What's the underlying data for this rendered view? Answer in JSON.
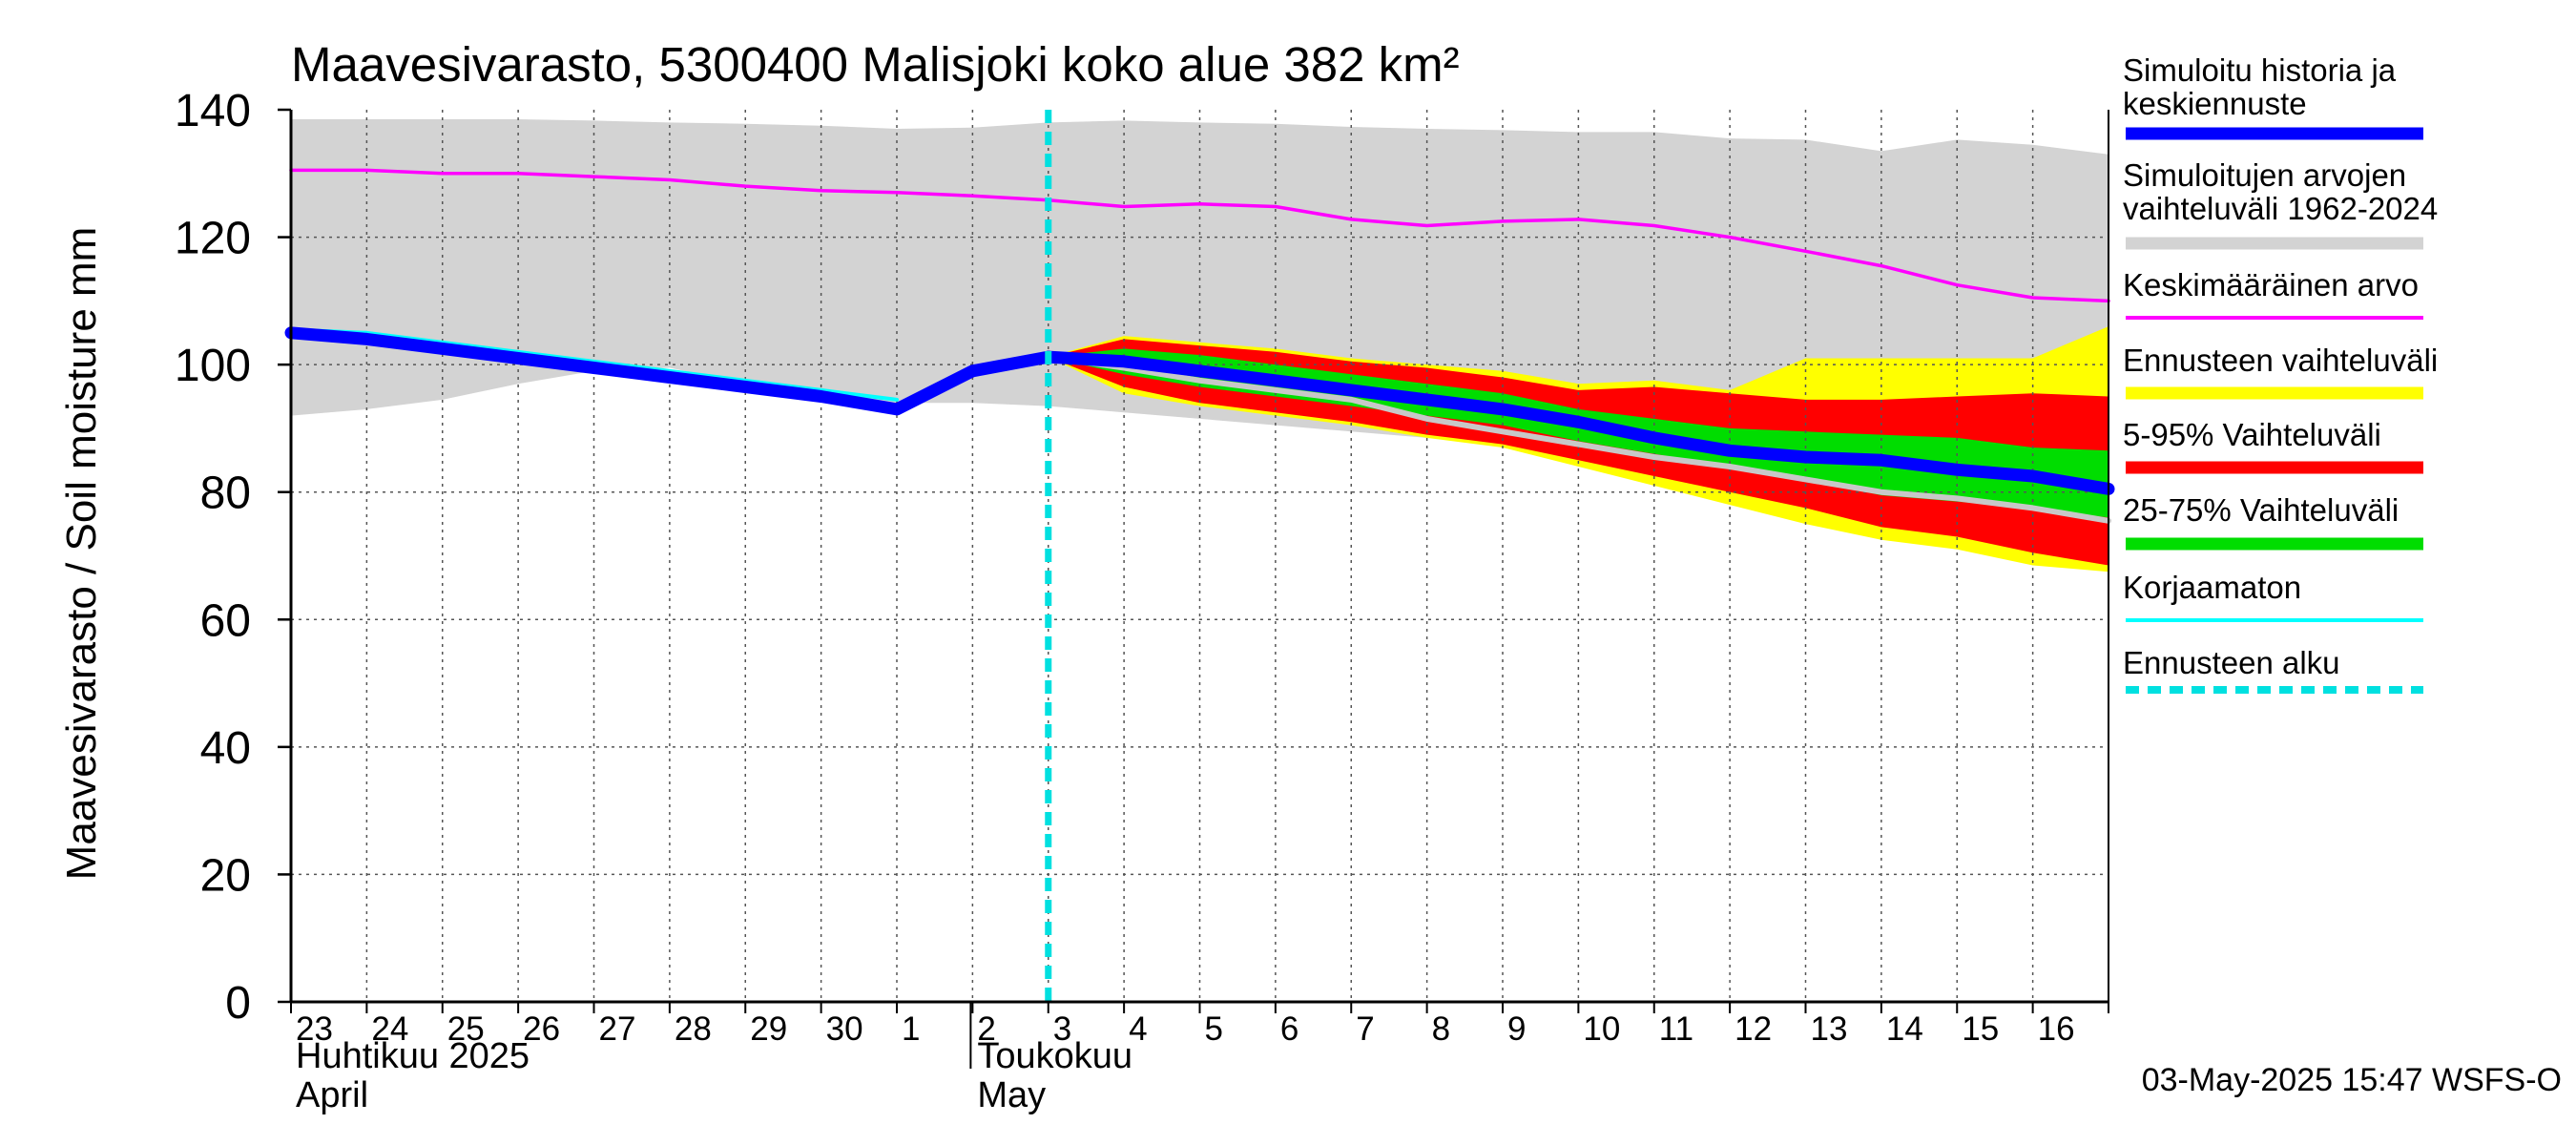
{
  "chart_data": {
    "type": "area",
    "title": "Maavesivarasto, 5300400 Malisjoki koko alue 382 km²",
    "ylabel": "Maavesivarasto / Soil moisture   mm",
    "ylim": [
      0,
      140
    ],
    "yticks": [
      0,
      20,
      40,
      60,
      80,
      100,
      120,
      140
    ],
    "xlim": [
      0,
      24
    ],
    "x_day_labels": [
      "23",
      "24",
      "25",
      "26",
      "27",
      "28",
      "29",
      "30",
      "1",
      "2",
      "3",
      "4",
      "5",
      "6",
      "7",
      "8",
      "9",
      "10",
      "11",
      "12",
      "13",
      "14",
      "15",
      "16"
    ],
    "month_labels": [
      {
        "fi": "Huhtikuu  2025",
        "en": "April",
        "x": 0
      },
      {
        "fi": "Toukokuu",
        "en": "May",
        "x": 9
      }
    ],
    "forecast_start_x": 10,
    "footer": "03-May-2025 15:47 WSFS-O",
    "grid": true,
    "colors": {
      "history": "#0000ff",
      "range": "#d3d3d3",
      "mean": "#ff00ff",
      "forecast_range": "#ffff00",
      "p5_95": "#ff0000",
      "p25_75": "#00dd00",
      "uncorrected": "#00ffff",
      "forecast_start": "#00e0e0"
    },
    "legend": [
      {
        "key": "history",
        "label": "Simuloitu historia ja keskiennuste",
        "lines": [
          "Simuloitu historia ja",
          "keskiennuste"
        ],
        "style": "thick"
      },
      {
        "key": "range",
        "label": "Simuloitujen arvojen vaihteluväli 1962-2024",
        "lines": [
          "Simuloitujen arvojen",
          "vaihteluväli 1962-2024"
        ],
        "style": "thick"
      },
      {
        "key": "mean",
        "label": "Keskimääräinen arvo",
        "lines": [
          "Keskimääräinen arvo"
        ],
        "style": "thin"
      },
      {
        "key": "forecast_range",
        "label": "Ennusteen vaihteluväli",
        "lines": [
          "Ennusteen vaihteluväli"
        ],
        "style": "thick"
      },
      {
        "key": "p5_95",
        "label": "5-95% Vaihteluväli",
        "lines": [
          "5-95% Vaihteluväli"
        ],
        "style": "thick"
      },
      {
        "key": "p25_75",
        "label": "25-75% Vaihteluväli",
        "lines": [
          "25-75% Vaihteluväli"
        ],
        "style": "thick"
      },
      {
        "key": "uncorrected",
        "label": "Korjaamaton",
        "lines": [
          "Korjaamaton"
        ],
        "style": "thin"
      },
      {
        "key": "forecast_start",
        "label": "Ennusteen alku",
        "lines": [
          "Ennusteen alku"
        ],
        "style": "dashed"
      }
    ],
    "series": {
      "range_upper": {
        "x": [
          0,
          1,
          2,
          3,
          4,
          5,
          6,
          7,
          8,
          9,
          10,
          11,
          12,
          13,
          14,
          15,
          16,
          17,
          18,
          19,
          20,
          21,
          22,
          23,
          24
        ],
        "values": [
          138.5,
          138.5,
          138.5,
          138.5,
          138.3,
          138,
          137.8,
          137.5,
          137,
          137.2,
          138,
          138.3,
          138,
          137.8,
          137.3,
          137,
          136.8,
          136.5,
          136.5,
          135.5,
          135.3,
          133.5,
          135.3,
          134.5,
          133
        ]
      },
      "range_lower": {
        "x": [
          0,
          1,
          2,
          3,
          4,
          5,
          6,
          7,
          8,
          9,
          10,
          11,
          12,
          13,
          14,
          15,
          16,
          17,
          18,
          19,
          20,
          21,
          22,
          23,
          24
        ],
        "values": [
          92,
          93,
          94.5,
          97,
          99,
          99.5,
          97,
          95,
          94,
          94,
          93.5,
          92.5,
          91.5,
          90.5,
          89.5,
          88.5,
          88,
          87,
          86,
          85,
          84.5,
          82,
          80,
          77,
          75
        ]
      },
      "mean": {
        "x": [
          0,
          1,
          2,
          3,
          4,
          5,
          6,
          7,
          8,
          9,
          10,
          11,
          12,
          13,
          14,
          15,
          16,
          17,
          18,
          19,
          20,
          21,
          22,
          23,
          24
        ],
        "values": [
          130.5,
          130.5,
          130,
          130,
          129.5,
          129,
          128,
          127.3,
          127,
          126.5,
          125.8,
          124.8,
          125.2,
          124.8,
          122.8,
          121.8,
          122.5,
          122.8,
          121.8,
          120,
          117.8,
          115.5,
          112.5,
          110.5,
          110
        ]
      },
      "history": {
        "x": [
          0,
          1,
          2,
          3,
          4,
          5,
          6,
          7,
          8,
          9,
          10
        ],
        "values": [
          105,
          104,
          102.5,
          101,
          99.5,
          98,
          96.5,
          95,
          93,
          99,
          101.2
        ]
      },
      "uncorrected": {
        "x": [
          0,
          1,
          2,
          3,
          4,
          5,
          6,
          7,
          8
        ],
        "values": [
          105.5,
          105,
          103.5,
          102,
          100.5,
          99,
          97.5,
          96,
          94.5
        ]
      },
      "forecast_range_upper": {
        "x": [
          10,
          11,
          12,
          13,
          14,
          15,
          16,
          17,
          18,
          19,
          20,
          21,
          22,
          23,
          24
        ],
        "values": [
          101.2,
          104.5,
          103.5,
          102.5,
          101,
          100,
          99,
          97,
          97.5,
          96,
          101,
          101,
          101,
          101,
          106
        ]
      },
      "forecast_range_lower": {
        "x": [
          10,
          11,
          12,
          13,
          14,
          15,
          16,
          17,
          18,
          19,
          20,
          21,
          22,
          23,
          24
        ],
        "values": [
          101.2,
          95.5,
          93.5,
          92,
          90.5,
          88.5,
          87,
          84,
          81,
          78,
          75,
          72.5,
          71,
          68.5,
          67.5
        ]
      },
      "p5_95_upper": {
        "x": [
          10,
          11,
          12,
          13,
          14,
          15,
          16,
          17,
          18,
          19,
          20,
          21,
          22,
          23,
          24
        ],
        "values": [
          101.2,
          104,
          103,
          102,
          100.5,
          99.5,
          98,
          96,
          96.5,
          95.5,
          94.5,
          94.5,
          95,
          95.5,
          95
        ]
      },
      "p5_95_lower": {
        "x": [
          10,
          11,
          12,
          13,
          14,
          15,
          16,
          17,
          18,
          19,
          20,
          21,
          22,
          23,
          24
        ],
        "values": [
          101.2,
          96.5,
          94,
          92.5,
          91,
          89,
          87.5,
          85,
          82.5,
          80,
          77.5,
          74.5,
          73,
          70.5,
          68.5
        ]
      },
      "p25_75_upper": {
        "x": [
          10,
          11,
          12,
          13,
          14,
          15,
          16,
          17,
          18,
          19,
          20,
          21,
          22,
          23,
          24
        ],
        "values": [
          101.2,
          102.5,
          101.5,
          100,
          98.5,
          97,
          95.5,
          93,
          91.5,
          90,
          89.5,
          89,
          88.5,
          87,
          86.5
        ]
      },
      "p25_75_lower": {
        "x": [
          10,
          11,
          12,
          13,
          14,
          15,
          16,
          17,
          18,
          19,
          20,
          21,
          22,
          23,
          24
        ],
        "values": [
          101.2,
          98.5,
          96.5,
          95,
          93.5,
          92,
          90.5,
          88,
          86,
          84,
          82,
          79.5,
          78.5,
          77.5,
          76
        ]
      },
      "median": {
        "x": [
          10,
          11,
          12,
          13,
          14,
          15,
          16,
          17,
          18,
          19,
          20,
          21,
          22,
          23,
          24
        ],
        "values": [
          101.2,
          100.5,
          99,
          97.5,
          96,
          94.5,
          93,
          91,
          88.5,
          86.5,
          85.5,
          85,
          83.5,
          82.5,
          80.5
        ]
      },
      "grey_member": {
        "x": [
          10,
          11,
          12,
          13,
          14,
          15,
          16,
          17,
          18,
          19,
          20,
          21,
          22,
          23,
          24
        ],
        "values": [
          101.2,
          99.5,
          97.5,
          96,
          94.5,
          91.5,
          89.5,
          87.5,
          85.5,
          84,
          82,
          80,
          79,
          77.5,
          75.5
        ]
      }
    }
  }
}
